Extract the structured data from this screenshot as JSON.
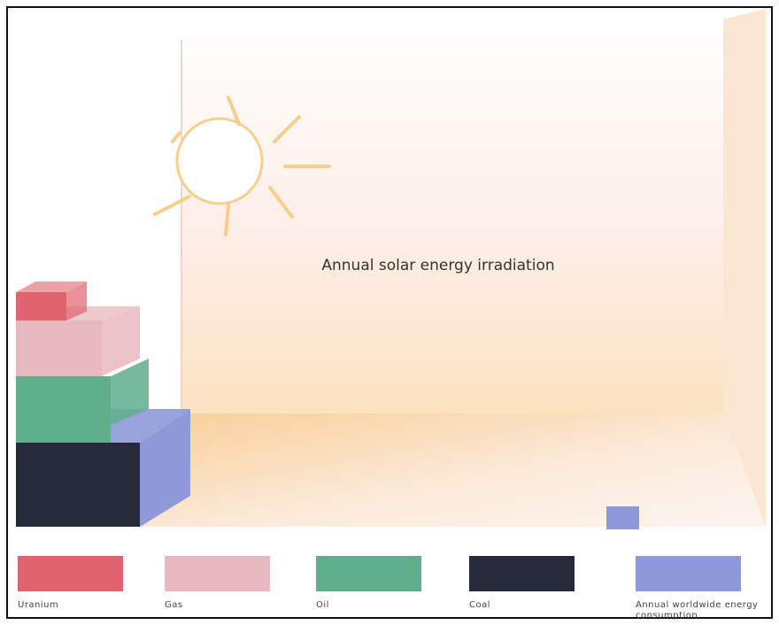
{
  "title": "Annual solar energy irradiation",
  "legend": [
    {
      "label": "Uranium",
      "color": "#e0646e"
    },
    {
      "label": "Gas",
      "color": "#e8b8c0"
    },
    {
      "label": "Oil",
      "color": "#5fae8e"
    },
    {
      "label": "Coal",
      "color": "#262a3a"
    },
    {
      "label": "Annual worldwide energy consumption",
      "color": "#8f98d8"
    }
  ]
}
